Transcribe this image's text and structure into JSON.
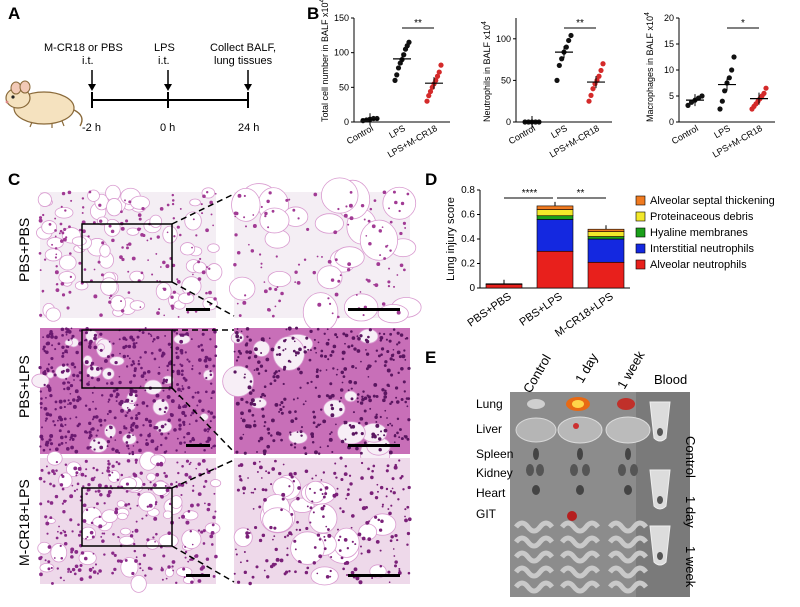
{
  "panels": {
    "A": "A",
    "B": "B",
    "C": "C",
    "D": "D",
    "E": "E"
  },
  "timeline": {
    "step1": "M-CR18 or PBS",
    "step1_route": "i.t.",
    "step2": "LPS",
    "step2_route": "i.t.",
    "step3_line1": "Collect BALF,",
    "step3_line2": "lung tissues",
    "t1": "-2 h",
    "t2": "0 h",
    "t3": "24 h"
  },
  "charts_b": [
    {
      "ylabel": "Total cell number in BALF x10",
      "exp": "4",
      "yticks": [
        0,
        50,
        100,
        150
      ],
      "ymax": 150,
      "categories": [
        "Control",
        "LPS",
        "LPS+M-CR18"
      ],
      "sig": "**",
      "groups": [
        {
          "color": "#111111",
          "mean": 4,
          "points": [
            2,
            3,
            4,
            5,
            5
          ]
        },
        {
          "color": "#111111",
          "mean": 91,
          "points": [
            60,
            68,
            78,
            85,
            90,
            97,
            105,
            110,
            115
          ]
        },
        {
          "color": "#d42a2a",
          "mean": 56,
          "points": [
            30,
            38,
            44,
            50,
            55,
            60,
            66,
            72,
            82
          ]
        }
      ]
    },
    {
      "ylabel": "Neutrophils in BALF x10",
      "exp": "4",
      "yticks": [
        0,
        50,
        100
      ],
      "ymax": 125,
      "categories": [
        "Control",
        "LPS",
        "LPS+M-CR18"
      ],
      "sig": "**",
      "groups": [
        {
          "color": "#111111",
          "mean": 0,
          "points": [
            0,
            0,
            0,
            0,
            0
          ]
        },
        {
          "color": "#111111",
          "mean": 84,
          "points": [
            50,
            68,
            76,
            84,
            90,
            98,
            104
          ]
        },
        {
          "color": "#d42a2a",
          "mean": 48,
          "points": [
            25,
            32,
            40,
            46,
            50,
            55,
            62,
            70
          ]
        }
      ]
    },
    {
      "ylabel": "Macrophages in BALF x10",
      "exp": "4",
      "yticks": [
        0,
        5,
        10,
        15,
        20
      ],
      "ymax": 20,
      "categories": [
        "Control",
        "LPS",
        "LPS+M-CR18"
      ],
      "sig": "*",
      "groups": [
        {
          "color": "#111111",
          "mean": 4.2,
          "points": [
            3.2,
            3.8,
            4.2,
            4.6,
            5.0
          ]
        },
        {
          "color": "#111111",
          "mean": 7.2,
          "points": [
            2.5,
            4.0,
            6.0,
            7.5,
            8.5,
            10.0,
            12.5
          ]
        },
        {
          "color": "#d42a2a",
          "mean": 4.5,
          "points": [
            2.5,
            3.0,
            3.5,
            4.0,
            4.5,
            5.0,
            5.5,
            6.5
          ]
        }
      ]
    }
  ],
  "histology": {
    "rows": [
      "PBS+PBS",
      "PBS+LPS",
      "M-CR18+LPS"
    ]
  },
  "chart_data": {
    "type": "bar",
    "stacked": true,
    "ylabel": "Lung injury score",
    "yticks": [
      0,
      0.2,
      0.4,
      0.6,
      0.8
    ],
    "ylim": [
      0,
      0.8
    ],
    "categories": [
      "PBS+PBS",
      "PBS+LPS",
      "M-CR18+LPS"
    ],
    "series": [
      {
        "name": "Alveolar neutrophils",
        "color": "#e8201c",
        "values": [
          0.03,
          0.3,
          0.21
        ]
      },
      {
        "name": "Interstitial neutrophils",
        "color": "#1428e0",
        "values": [
          0.005,
          0.26,
          0.19
        ]
      },
      {
        "name": "Hyaline membranes",
        "color": "#1aa01a",
        "values": [
          0.0,
          0.03,
          0.02
        ]
      },
      {
        "name": "Proteinaceous debris",
        "color": "#f2e82a",
        "values": [
          0.0,
          0.05,
          0.04
        ]
      },
      {
        "name": "Alveolar septal thickening",
        "color": "#f07a20",
        "values": [
          0.0,
          0.03,
          0.02
        ]
      }
    ],
    "legend_order": [
      "Alveolar septal thickening",
      "Proteinaceous debris",
      "Hyaline membranes",
      "Interstitial neutrophils",
      "Alveolar neutrophils"
    ],
    "significance": [
      {
        "from": 0,
        "to": 1,
        "label": "****"
      },
      {
        "from": 1,
        "to": 2,
        "label": "**"
      }
    ]
  },
  "imaging": {
    "columns": [
      "Control",
      "1 day",
      "1 week",
      "Blood"
    ],
    "organs": [
      "Lung",
      "Liver",
      "Spleen",
      "Kidney",
      "Heart",
      "GIT"
    ],
    "blood_rows": [
      "Control",
      "1 day",
      "1 week"
    ]
  }
}
